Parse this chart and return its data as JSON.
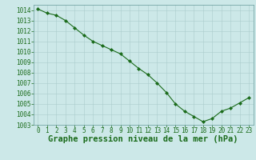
{
  "x": [
    0,
    1,
    2,
    3,
    4,
    5,
    6,
    7,
    8,
    9,
    10,
    11,
    12,
    13,
    14,
    15,
    16,
    17,
    18,
    19,
    20,
    21,
    22,
    23
  ],
  "y": [
    1014.1,
    1013.7,
    1013.5,
    1013.0,
    1012.3,
    1011.6,
    1011.0,
    1010.6,
    1010.2,
    1009.8,
    1009.1,
    1008.4,
    1007.8,
    1007.0,
    1006.1,
    1005.0,
    1004.3,
    1003.8,
    1003.3,
    1003.6,
    1004.3,
    1004.6,
    1005.1,
    1005.6
  ],
  "ylim": [
    1003,
    1014.5
  ],
  "xlim": [
    -0.5,
    23.5
  ],
  "yticks": [
    1003,
    1004,
    1005,
    1006,
    1007,
    1008,
    1009,
    1010,
    1011,
    1012,
    1013,
    1014
  ],
  "xticks": [
    0,
    1,
    2,
    3,
    4,
    5,
    6,
    7,
    8,
    9,
    10,
    11,
    12,
    13,
    14,
    15,
    16,
    17,
    18,
    19,
    20,
    21,
    22,
    23
  ],
  "line_color": "#1a6b1a",
  "marker_color": "#1a6b1a",
  "bg_color": "#cce8e8",
  "grid_color": "#aacccc",
  "xlabel": "Graphe pression niveau de la mer (hPa)",
  "xlabel_fontsize": 7.5,
  "tick_fontsize": 5.5,
  "marker": "D",
  "marker_size": 2.0,
  "line_width": 0.8
}
